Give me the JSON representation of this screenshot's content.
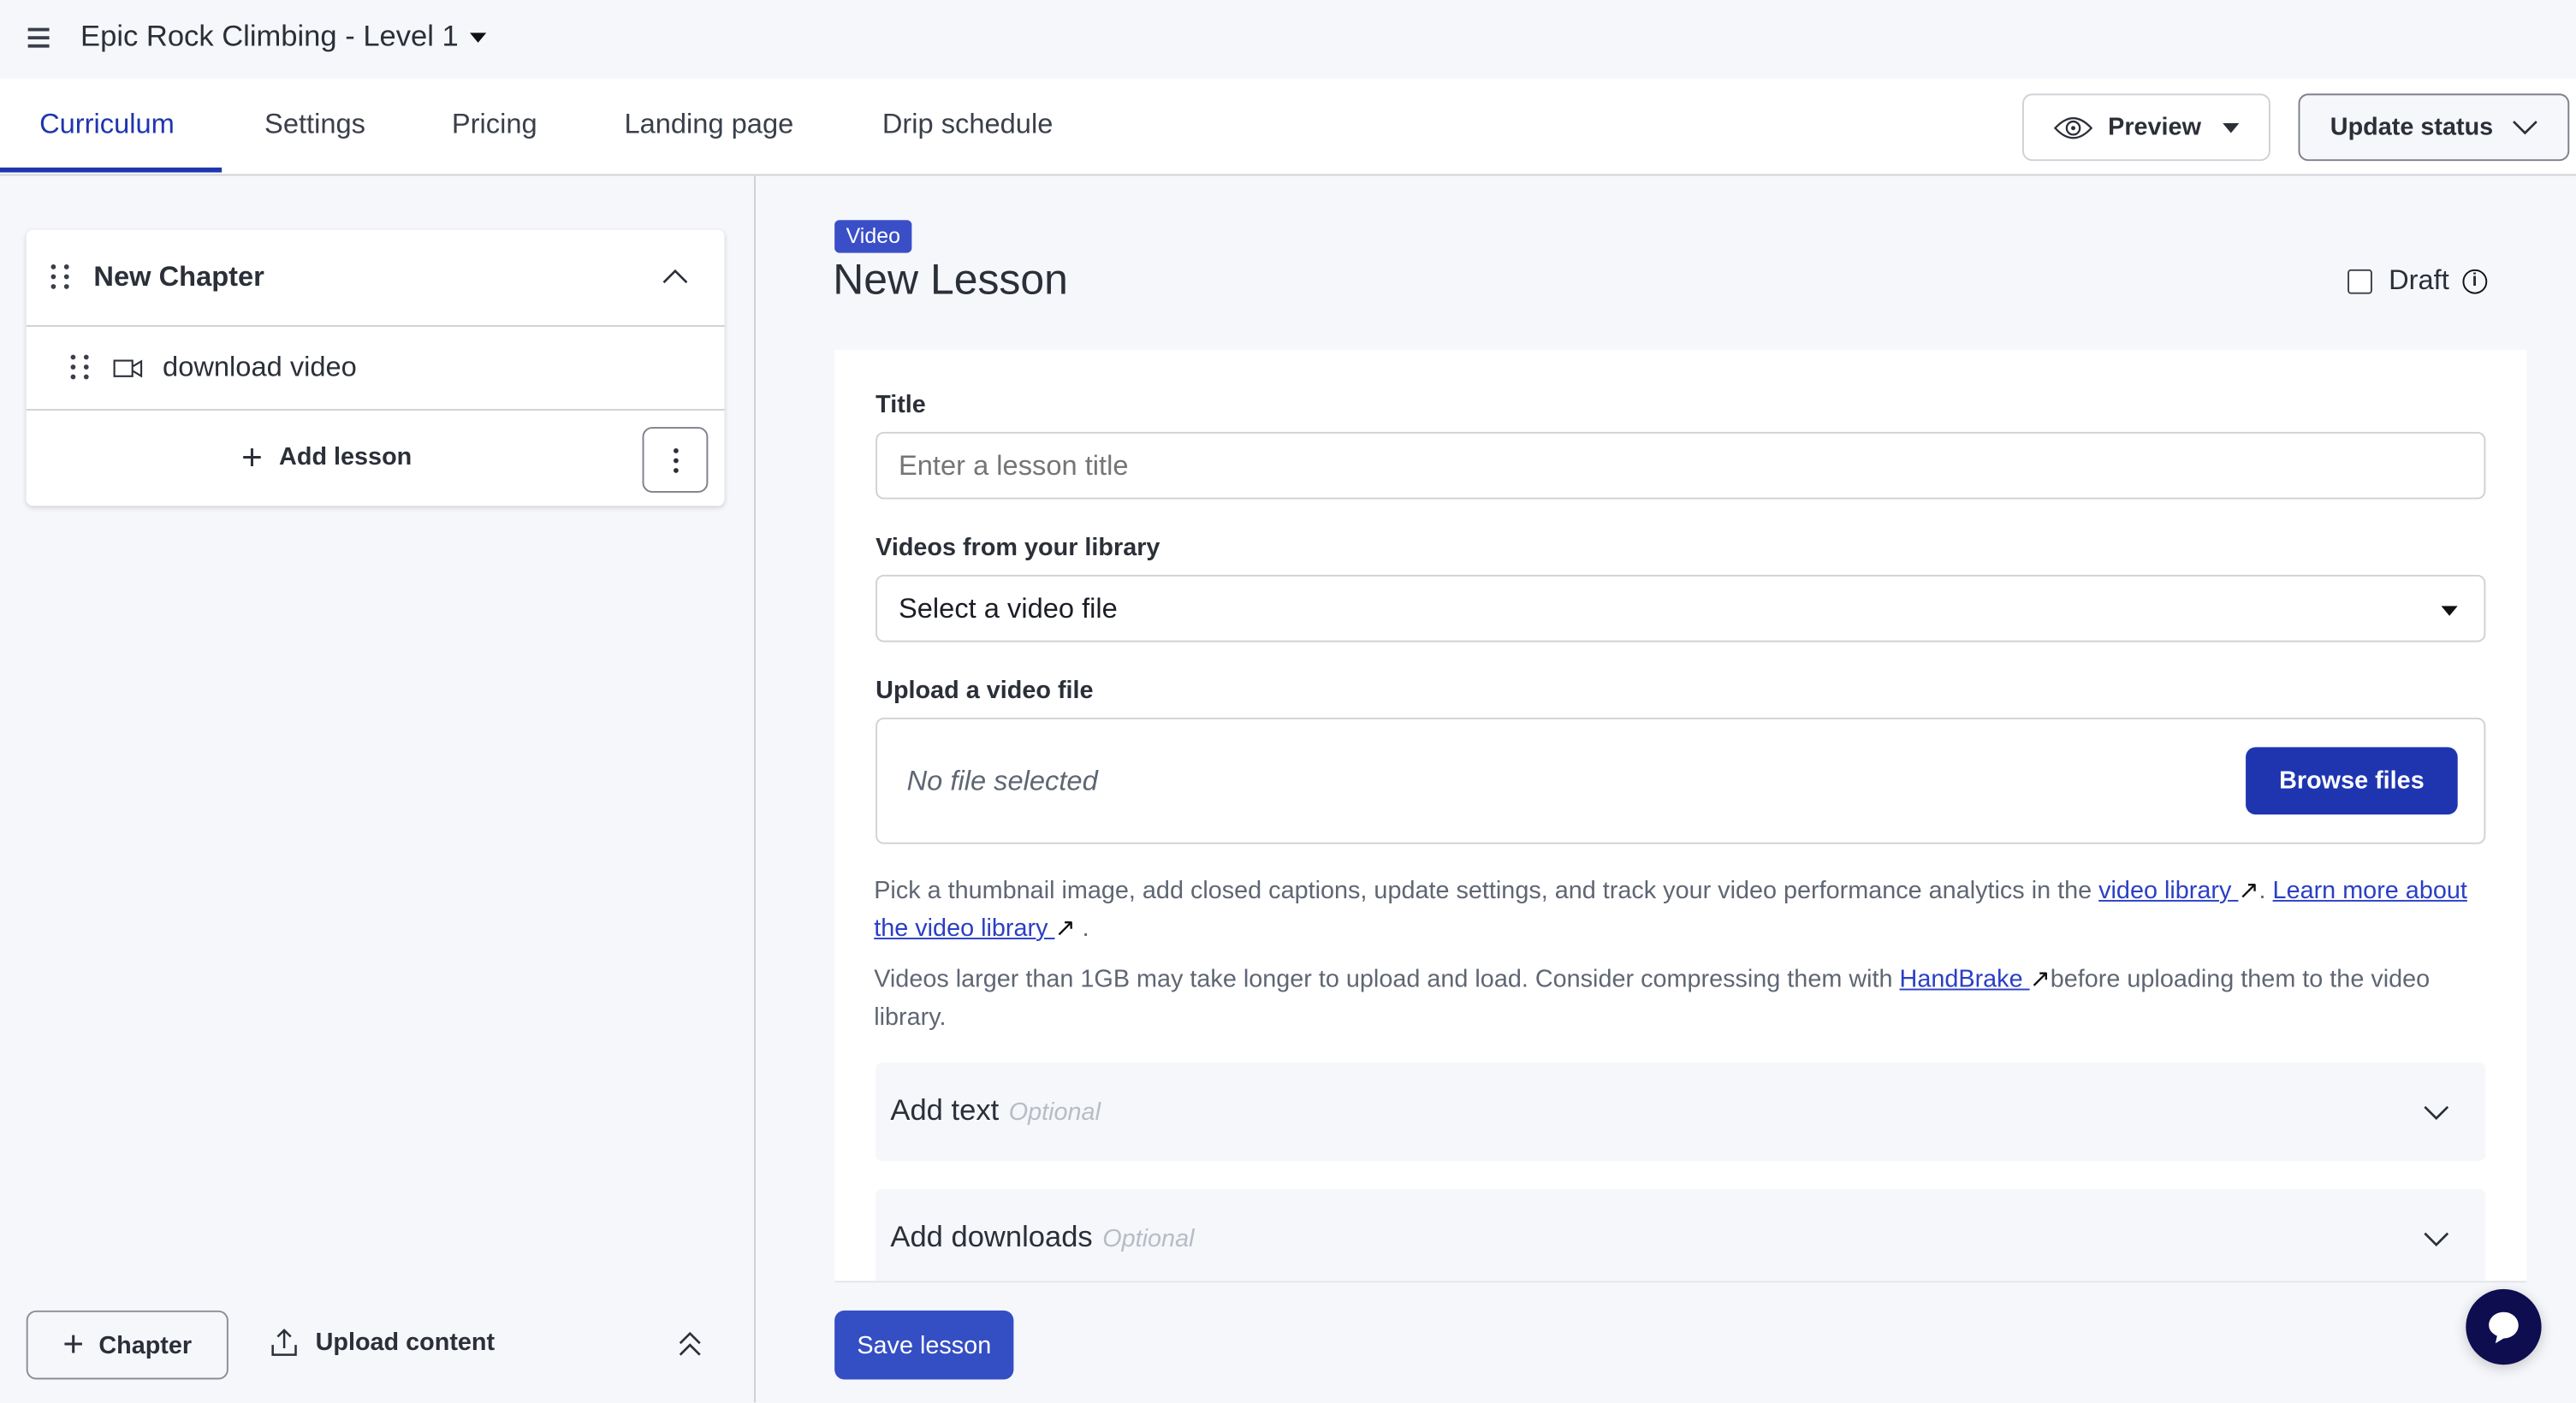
{
  "header": {
    "course_title": "Epic Rock Climbing - Level 1",
    "menu_icon": "hamburger-icon",
    "dropdown_icon": "caret-down-icon"
  },
  "tabs": [
    {
      "label": "Curriculum",
      "active": true
    },
    {
      "label": "Settings",
      "active": false
    },
    {
      "label": "Pricing",
      "active": false
    },
    {
      "label": "Landing page",
      "active": false
    },
    {
      "label": "Drip schedule",
      "active": false
    }
  ],
  "toolbar": {
    "preview_label": "Preview",
    "update_status_label": "Update status"
  },
  "sidebar": {
    "chapter_title": "New Chapter",
    "lessons": [
      {
        "title": "download video",
        "icon": "video-camera-icon"
      }
    ],
    "add_lesson_label": "Add lesson",
    "add_chapter_label": "Chapter",
    "upload_content_label": "Upload content"
  },
  "lesson": {
    "type_badge": "Video",
    "title": "New Lesson",
    "draft_label": "Draft",
    "draft_checked": false,
    "title_label": "Title",
    "title_placeholder": "Enter a lesson title",
    "library_label": "Videos from your library",
    "library_selected": "Select a video file",
    "upload_label": "Upload a video file",
    "no_file_text": "No file selected",
    "browse_label": "Browse files",
    "help1_pre": "Pick a thumbnail image, add closed captions, update settings, and track your video performance analytics in the ",
    "help1_link1": "video library ",
    "help1_mid": ". ",
    "help1_link2": "Learn more about the video library ",
    "help1_post": ".",
    "help2_pre": "Videos larger than 1GB may take longer to upload and load. Consider compressing them with ",
    "help2_link": "HandBrake ",
    "help2_post": "before uploading them to the video library.",
    "accordions": [
      {
        "title": "Add text",
        "optional": "Optional"
      },
      {
        "title": "Add downloads",
        "optional": "Optional"
      }
    ],
    "save_label": "Save lesson"
  },
  "colors": {
    "primary": "#1f35b0",
    "save_button": "#344ec4",
    "chat": "#0e0d4f"
  }
}
